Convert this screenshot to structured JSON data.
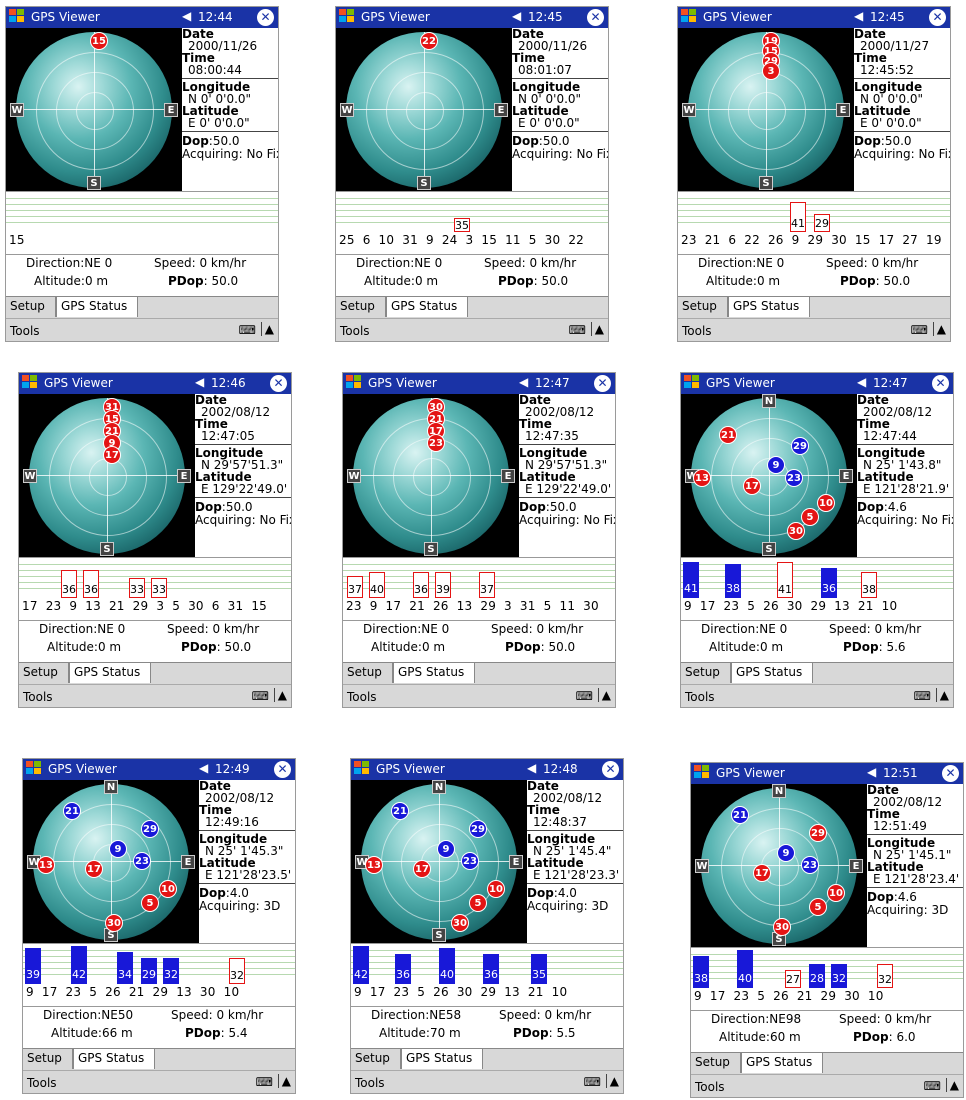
{
  "app": {
    "title": "GPS Viewer",
    "labels": {
      "date": "Date",
      "time": "Time",
      "longitude": "Longitude",
      "latitude": "Latitude",
      "dop": "Dop",
      "direction": "Direction",
      "altitude": "Altitude",
      "speed": "Speed",
      "pdop": "PDop"
    },
    "tabs": [
      "Setup",
      "GPS Status"
    ],
    "menu": {
      "tools": "Tools",
      "keyboard_icon": "keyboard-icon",
      "up_icon": "up-arrow-icon"
    },
    "icons": {
      "start": "windows-start-icon",
      "speaker": "speaker-icon",
      "close": "close-icon"
    },
    "colors": {
      "titlebar": "#1a33a6",
      "sat_red": "#e41414",
      "sat_blue": "#1818d8"
    },
    "cardinals": {
      "north": "N",
      "west": "W",
      "east": "E",
      "south": "S"
    }
  },
  "screens": [
    {
      "clock": "12:44",
      "date": "2000/11/26",
      "time": "08:00:44",
      "longitude": "N  0' 0'0.0\"",
      "latitude": "E  0' 0'0.0\"",
      "dop": ":50.0",
      "acquiring": "Acquiring: No Fix",
      "direction": ":NE 0",
      "altitude": ":0 m",
      "speed": ": 0 km/hr",
      "pdop": ": 50.0",
      "prns": "15",
      "satellites": [
        {
          "id": "15",
          "color": "red"
        }
      ],
      "bars": []
    },
    {
      "clock": "12:45",
      "date": "2000/11/26",
      "time": "08:01:07",
      "longitude": "N  0' 0'0.0\"",
      "latitude": "E  0' 0'0.0\"",
      "dop": ":50.0",
      "acquiring": "Acquiring: No Fix",
      "direction": ":NE 0",
      "altitude": ":0 m",
      "speed": ": 0 km/hr",
      "pdop": ": 50.0",
      "prns": "25  6  10  31  9  24  3  15  11  5  30  22",
      "satellites": [
        {
          "id": "22",
          "color": "red"
        }
      ],
      "bars": [
        {
          "v": "35",
          "c": "red"
        }
      ]
    },
    {
      "clock": "12:45",
      "date": "2000/11/27",
      "time": "12:45:52",
      "longitude": "N  0' 0'0.0\"",
      "latitude": "E  0' 0'0.0\"",
      "dop": ":50.0",
      "acquiring": "Acquiring: No Fix",
      "direction": ":NE 0",
      "altitude": ":0 m",
      "speed": ": 0 km/hr",
      "pdop": ": 50.0",
      "prns": "23  21  6  22  26  9  29  30  15  17  27  19",
      "satellites": [
        {
          "id": "19",
          "color": "red"
        },
        {
          "id": "15",
          "color": "red"
        },
        {
          "id": "29",
          "color": "red"
        },
        {
          "id": "3",
          "color": "red"
        }
      ],
      "bars": [
        {
          "v": "41",
          "c": "red"
        },
        {
          "v": "29",
          "c": "red"
        }
      ]
    },
    {
      "clock": "12:46",
      "date": "2002/08/12",
      "time": "12:47:05",
      "longitude": "N  29'57'51.3\"",
      "latitude": "E 129'22'49.0'",
      "dop": ":50.0",
      "acquiring": "Acquiring: No Fix",
      "direction": ":NE 0",
      "altitude": ":0 m",
      "speed": ": 0 km/hr",
      "pdop": ": 50.0",
      "prns": "17  23  9  13  21  29  3  5  30  6  31  15",
      "satellites": [
        {
          "id": "31",
          "color": "red"
        },
        {
          "id": "15",
          "color": "red"
        },
        {
          "id": "21",
          "color": "red"
        },
        {
          "id": "9",
          "color": "red"
        },
        {
          "id": "17",
          "color": "red"
        }
      ],
      "bars": [
        {
          "v": "36",
          "c": "red"
        },
        {
          "v": "36",
          "c": "red"
        },
        {
          "v": "33",
          "c": "red"
        },
        {
          "v": "33",
          "c": "red"
        }
      ]
    },
    {
      "clock": "12:47",
      "date": "2002/08/12",
      "time": "12:47:35",
      "longitude": "N  29'57'51.3\"",
      "latitude": "E 129'22'49.0'",
      "dop": ":50.0",
      "acquiring": "Acquiring: No Fix",
      "direction": ":NE 0",
      "altitude": ":0 m",
      "speed": ": 0 km/hr",
      "pdop": ": 50.0",
      "prns": "23  9  17  21  26  13  29  3  31  5  11  30",
      "satellites": [
        {
          "id": "30",
          "color": "red"
        },
        {
          "id": "21",
          "color": "red"
        },
        {
          "id": "17",
          "color": "red"
        },
        {
          "id": "23",
          "color": "red"
        }
      ],
      "bars": [
        {
          "v": "37",
          "c": "red"
        },
        {
          "v": "40",
          "c": "red"
        },
        {
          "v": "36",
          "c": "red"
        },
        {
          "v": "39",
          "c": "red"
        },
        {
          "v": "37",
          "c": "red"
        }
      ]
    },
    {
      "clock": "12:47",
      "date": "2002/08/12",
      "time": "12:47:44",
      "longitude": "N  25' 1'43.8\"",
      "latitude": "E 121'28'21.9'",
      "dop": ":4.6",
      "acquiring": "Acquiring: No Fix",
      "direction": ":NE 0",
      "altitude": ":0 m",
      "speed": ": 0 km/hr",
      "pdop": ": 5.6",
      "prns": "9  17  23  5  26  30  29  13  21  10",
      "satellites": [
        {
          "id": "21",
          "color": "red"
        },
        {
          "id": "29",
          "color": "blue"
        },
        {
          "id": "13",
          "color": "red"
        },
        {
          "id": "17",
          "color": "red"
        },
        {
          "id": "9",
          "color": "blue"
        },
        {
          "id": "23",
          "color": "blue"
        },
        {
          "id": "10",
          "color": "red"
        },
        {
          "id": "5",
          "color": "red"
        },
        {
          "id": "30",
          "color": "red"
        }
      ],
      "bars": [
        {
          "v": "41",
          "c": "blue"
        },
        {
          "v": "38",
          "c": "blue"
        },
        {
          "v": "41",
          "c": "red"
        },
        {
          "v": "36",
          "c": "blue"
        },
        {
          "v": "38",
          "c": "red"
        }
      ]
    },
    {
      "clock": "12:49",
      "date": "2002/08/12",
      "time": "12:49:16",
      "longitude": "N  25' 1'45.3\"",
      "latitude": "E 121'28'23.5'",
      "dop": ":4.0",
      "acquiring": "Acquiring: 3D",
      "direction": ":NE50",
      "altitude": ":66 m",
      "speed": ": 0 km/hr",
      "pdop": ": 5.4",
      "prns": "9  17  23  5  26  21  29  13  30  10",
      "satellites": [
        {
          "id": "21",
          "color": "blue"
        },
        {
          "id": "29",
          "color": "blue"
        },
        {
          "id": "13",
          "color": "red"
        },
        {
          "id": "17",
          "color": "red"
        },
        {
          "id": "9",
          "color": "blue"
        },
        {
          "id": "23",
          "color": "blue"
        },
        {
          "id": "10",
          "color": "red"
        },
        {
          "id": "5",
          "color": "red"
        },
        {
          "id": "30",
          "color": "red"
        }
      ],
      "bars": [
        {
          "v": "39",
          "c": "blue"
        },
        {
          "v": "42",
          "c": "blue"
        },
        {
          "v": "34",
          "c": "blue"
        },
        {
          "v": "29",
          "c": "blue"
        },
        {
          "v": "32",
          "c": "blue"
        },
        {
          "v": "32",
          "c": "red"
        }
      ]
    },
    {
      "clock": "12:48",
      "date": "2002/08/12",
      "time": "12:48:37",
      "longitude": "N  25' 1'45.4\"",
      "latitude": "E 121'28'23.3'",
      "dop": ":4.0",
      "acquiring": "Acquiring: 3D",
      "direction": ":NE58",
      "altitude": ":70 m",
      "speed": ": 0 km/hr",
      "pdop": ": 5.5",
      "prns": "9  17  23  5  26  30  29  13  21  10",
      "satellites": [
        {
          "id": "21",
          "color": "blue"
        },
        {
          "id": "29",
          "color": "blue"
        },
        {
          "id": "13",
          "color": "red"
        },
        {
          "id": "17",
          "color": "red"
        },
        {
          "id": "9",
          "color": "blue"
        },
        {
          "id": "23",
          "color": "blue"
        },
        {
          "id": "10",
          "color": "red"
        },
        {
          "id": "5",
          "color": "red"
        },
        {
          "id": "30",
          "color": "red"
        }
      ],
      "bars": [
        {
          "v": "42",
          "c": "blue"
        },
        {
          "v": "36",
          "c": "blue"
        },
        {
          "v": "40",
          "c": "blue"
        },
        {
          "v": "36",
          "c": "blue"
        },
        {
          "v": "35",
          "c": "blue"
        }
      ]
    },
    {
      "clock": "12:51",
      "date": "2002/08/12",
      "time": "12:51:49",
      "longitude": "N  25' 1'45.1\"",
      "latitude": "E 121'28'23.4'",
      "dop": ":4.6",
      "acquiring": "Acquiring: 3D",
      "direction": ":NE98",
      "altitude": ":60 m",
      "speed": ": 0 km/hr",
      "pdop": ": 6.0",
      "prns": "9  17  23  5  26  21  29  30  10",
      "satellites": [
        {
          "id": "21",
          "color": "blue"
        },
        {
          "id": "29",
          "color": "red"
        },
        {
          "id": "17",
          "color": "red"
        },
        {
          "id": "9",
          "color": "blue"
        },
        {
          "id": "23",
          "color": "blue"
        },
        {
          "id": "10",
          "color": "red"
        },
        {
          "id": "5",
          "color": "red"
        },
        {
          "id": "30",
          "color": "red"
        }
      ],
      "bars": [
        {
          "v": "38",
          "c": "blue"
        },
        {
          "v": "40",
          "c": "blue"
        },
        {
          "v": "27",
          "c": "red"
        },
        {
          "v": "28",
          "c": "blue"
        },
        {
          "v": "32",
          "c": "blue"
        },
        {
          "v": "32",
          "c": "red"
        }
      ]
    }
  ]
}
